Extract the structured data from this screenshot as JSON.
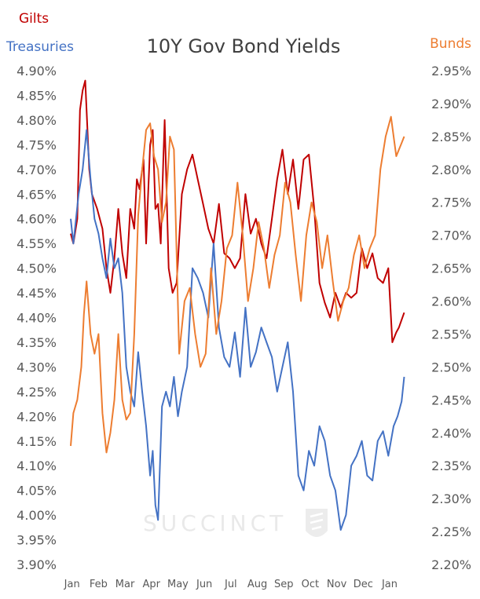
{
  "chart_data": {
    "type": "line",
    "title": "10Y Gov Bond Yields",
    "watermark": "SUCCINCT",
    "x_categories": [
      "Jan",
      "Feb",
      "Mar",
      "Apr",
      "May",
      "Jun",
      "Jul",
      "Aug",
      "Sep",
      "Oct",
      "Nov",
      "Dec",
      "Jan"
    ],
    "left_axis": {
      "ylim": [
        3.9,
        4.9
      ],
      "ticks": [
        "3.90%",
        "3.95%",
        "4.00%",
        "4.05%",
        "4.10%",
        "4.15%",
        "4.20%",
        "4.25%",
        "4.30%",
        "4.35%",
        "4.40%",
        "4.45%",
        "4.50%",
        "4.55%",
        "4.60%",
        "4.65%",
        "4.70%",
        "4.75%",
        "4.80%",
        "4.85%",
        "4.90%"
      ],
      "series": [
        "Gilts",
        "Treasuries"
      ]
    },
    "right_axis": {
      "ylim": [
        2.2,
        2.95
      ],
      "ticks": [
        "2.20%",
        "2.25%",
        "2.30%",
        "2.35%",
        "2.40%",
        "2.45%",
        "2.50%",
        "2.55%",
        "2.60%",
        "2.65%",
        "2.70%",
        "2.75%",
        "2.80%",
        "2.85%",
        "2.90%",
        "2.95%"
      ],
      "series": [
        "Bunds"
      ]
    },
    "series": [
      {
        "name": "Gilts",
        "axis": "left",
        "color": "#c00000",
        "x": [
          0,
          0.1,
          0.25,
          0.35,
          0.45,
          0.55,
          0.7,
          0.8,
          1.0,
          1.2,
          1.35,
          1.5,
          1.65,
          1.8,
          1.95,
          2.1,
          2.25,
          2.4,
          2.5,
          2.6,
          2.75,
          2.85,
          3.0,
          3.1,
          3.2,
          3.3,
          3.4,
          3.5,
          3.55,
          3.7,
          3.85,
          4.0,
          4.2,
          4.4,
          4.6,
          4.8,
          5.0,
          5.2,
          5.4,
          5.6,
          5.8,
          6.0,
          6.2,
          6.4,
          6.6,
          6.8,
          7.0,
          7.2,
          7.4,
          7.6,
          7.8,
          8.0,
          8.2,
          8.4,
          8.6,
          8.8,
          9.0,
          9.2,
          9.4,
          9.6,
          9.8,
          10.0,
          10.2,
          10.4,
          10.6,
          10.8,
          11.0,
          11.2,
          11.4,
          11.6,
          11.8,
          12.0,
          12.15,
          12.3,
          12.4,
          12.6
        ],
        "values": [
          4.57,
          4.55,
          4.6,
          4.82,
          4.86,
          4.88,
          4.7,
          4.65,
          4.62,
          4.58,
          4.5,
          4.45,
          4.52,
          4.62,
          4.53,
          4.48,
          4.62,
          4.58,
          4.68,
          4.66,
          4.72,
          4.55,
          4.75,
          4.78,
          4.62,
          4.63,
          4.55,
          4.72,
          4.8,
          4.5,
          4.45,
          4.47,
          4.65,
          4.7,
          4.73,
          4.68,
          4.63,
          4.58,
          4.55,
          4.63,
          4.53,
          4.52,
          4.5,
          4.52,
          4.65,
          4.57,
          4.6,
          4.55,
          4.52,
          4.6,
          4.68,
          4.74,
          4.65,
          4.72,
          4.62,
          4.72,
          4.73,
          4.62,
          4.47,
          4.43,
          4.4,
          4.45,
          4.42,
          4.45,
          4.44,
          4.45,
          4.54,
          4.5,
          4.53,
          4.48,
          4.47,
          4.5,
          4.35,
          4.37,
          4.38,
          4.41
        ]
      },
      {
        "name": "Treasuries",
        "axis": "left",
        "color": "#4472c4",
        "x": [
          0,
          0.1,
          0.3,
          0.45,
          0.6,
          0.75,
          0.9,
          1.05,
          1.2,
          1.35,
          1.5,
          1.65,
          1.8,
          1.95,
          2.1,
          2.25,
          2.4,
          2.55,
          2.7,
          2.85,
          3.0,
          3.1,
          3.2,
          3.3,
          3.45,
          3.6,
          3.75,
          3.9,
          4.05,
          4.2,
          4.4,
          4.6,
          4.8,
          5.0,
          5.2,
          5.4,
          5.6,
          5.8,
          6.0,
          6.2,
          6.4,
          6.6,
          6.8,
          7.0,
          7.2,
          7.4,
          7.6,
          7.8,
          8.0,
          8.2,
          8.4,
          8.6,
          8.8,
          9.0,
          9.2,
          9.4,
          9.6,
          9.8,
          10.0,
          10.2,
          10.4,
          10.6,
          10.8,
          11.0,
          11.2,
          11.4,
          11.6,
          11.8,
          12.0,
          12.2,
          12.35,
          12.5,
          12.6
        ],
        "values": [
          4.6,
          4.55,
          4.65,
          4.7,
          4.78,
          4.68,
          4.6,
          4.57,
          4.52,
          4.48,
          4.56,
          4.5,
          4.52,
          4.45,
          4.3,
          4.25,
          4.22,
          4.33,
          4.25,
          4.18,
          4.08,
          4.13,
          4.02,
          3.99,
          4.22,
          4.25,
          4.22,
          4.28,
          4.2,
          4.25,
          4.3,
          4.5,
          4.48,
          4.45,
          4.4,
          4.55,
          4.38,
          4.32,
          4.3,
          4.37,
          4.28,
          4.42,
          4.3,
          4.33,
          4.38,
          4.35,
          4.32,
          4.25,
          4.3,
          4.35,
          4.25,
          4.08,
          4.05,
          4.13,
          4.1,
          4.18,
          4.15,
          4.08,
          4.05,
          3.97,
          4.0,
          4.1,
          4.12,
          4.15,
          4.08,
          4.07,
          4.15,
          4.17,
          4.12,
          4.18,
          4.2,
          4.23,
          4.28
        ]
      },
      {
        "name": "Bunds",
        "axis": "right",
        "color": "#ed7d31",
        "x": [
          0,
          0.1,
          0.25,
          0.4,
          0.5,
          0.6,
          0.75,
          0.9,
          1.05,
          1.2,
          1.35,
          1.5,
          1.65,
          1.8,
          1.95,
          2.1,
          2.25,
          2.4,
          2.55,
          2.7,
          2.85,
          3.0,
          3.15,
          3.3,
          3.45,
          3.6,
          3.75,
          3.9,
          4.1,
          4.3,
          4.5,
          4.7,
          4.9,
          5.1,
          5.3,
          5.5,
          5.7,
          5.9,
          6.1,
          6.3,
          6.5,
          6.7,
          6.9,
          7.1,
          7.3,
          7.5,
          7.7,
          7.9,
          8.1,
          8.3,
          8.5,
          8.7,
          8.9,
          9.1,
          9.3,
          9.5,
          9.7,
          9.9,
          10.1,
          10.3,
          10.5,
          10.7,
          10.9,
          11.1,
          11.3,
          11.5,
          11.7,
          11.9,
          12.1,
          12.3,
          12.5,
          12.6
        ],
        "values": [
          2.38,
          2.43,
          2.45,
          2.5,
          2.58,
          2.63,
          2.55,
          2.52,
          2.55,
          2.43,
          2.37,
          2.4,
          2.45,
          2.55,
          2.45,
          2.42,
          2.43,
          2.55,
          2.73,
          2.8,
          2.86,
          2.87,
          2.82,
          2.8,
          2.72,
          2.75,
          2.85,
          2.83,
          2.52,
          2.6,
          2.62,
          2.55,
          2.5,
          2.52,
          2.65,
          2.55,
          2.6,
          2.68,
          2.7,
          2.78,
          2.7,
          2.6,
          2.65,
          2.72,
          2.68,
          2.62,
          2.67,
          2.7,
          2.78,
          2.75,
          2.67,
          2.6,
          2.7,
          2.75,
          2.72,
          2.65,
          2.7,
          2.63,
          2.57,
          2.6,
          2.62,
          2.67,
          2.7,
          2.65,
          2.68,
          2.7,
          2.8,
          2.85,
          2.88,
          2.82,
          2.84,
          2.85
        ]
      }
    ]
  }
}
